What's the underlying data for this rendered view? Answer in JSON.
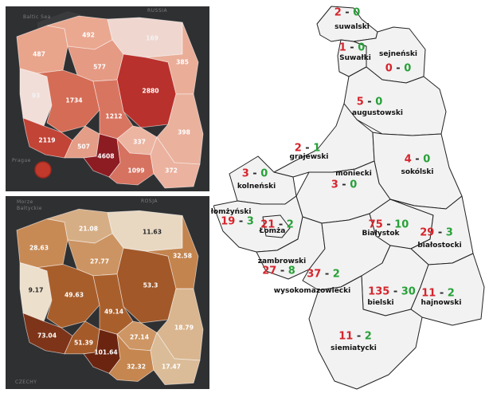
{
  "top_map": {
    "background_labels": [
      "Baltic Sea",
      "RUSSIA",
      "Prague"
    ],
    "voivodeships": [
      {
        "id": "zachodniopomorskie",
        "value": "487",
        "color": "#e9a48c"
      },
      {
        "id": "pomorskie",
        "value": "492",
        "color": "#eaa890"
      },
      {
        "id": "warminsko-mazurskie",
        "value": "169",
        "color": "#efd6cf"
      },
      {
        "id": "kujawsko-pomorskie",
        "value": "577",
        "color": "#e59a83"
      },
      {
        "id": "podlaskie",
        "value": "385",
        "color": "#eaad98"
      },
      {
        "id": "lubuskie",
        "value": "93",
        "color": "#f2ded8"
      },
      {
        "id": "wielkopolskie",
        "value": "1734",
        "color": "#d56c55"
      },
      {
        "id": "mazowieckie",
        "value": "2880",
        "color": "#b9312c"
      },
      {
        "id": "lodzkie",
        "value": "1212",
        "color": "#d87560"
      },
      {
        "id": "dolnoslaskie",
        "value": "2119",
        "color": "#c24437"
      },
      {
        "id": "opolskie",
        "value": "507",
        "color": "#e49d86"
      },
      {
        "id": "swietokrzyskie",
        "value": "337",
        "color": "#ecb5a2"
      },
      {
        "id": "lubelskie",
        "value": "398",
        "color": "#eab19d"
      },
      {
        "id": "slaskie",
        "value": "4608",
        "color": "#8c1b22"
      },
      {
        "id": "malopolskie",
        "value": "1099",
        "color": "#d67260"
      },
      {
        "id": "podkarpackie",
        "value": "372",
        "color": "#ebb29f"
      }
    ]
  },
  "bottom_map": {
    "background_labels": [
      "Morze",
      "Baltyckie",
      "ROSJA",
      "CZECHY"
    ],
    "voivodeships": [
      {
        "id": "zachodniopomorskie",
        "value": "28.63",
        "color": "#c88a55"
      },
      {
        "id": "pomorskie",
        "value": "21.08",
        "color": "#d6ae85"
      },
      {
        "id": "warminsko-mazurskie",
        "value": "11.63",
        "color": "#e8d8c2"
      },
      {
        "id": "kujawsko-pomorskie",
        "value": "27.77",
        "color": "#cc9462"
      },
      {
        "id": "podlaskie",
        "value": "32.58",
        "color": "#c4844e"
      },
      {
        "id": "lubuskie",
        "value": "9.17",
        "color": "#ecdfcc"
      },
      {
        "id": "wielkopolskie",
        "value": "49.63",
        "color": "#a85e2b"
      },
      {
        "id": "mazowieckie",
        "value": "53.3",
        "color": "#a25828"
      },
      {
        "id": "lodzkie",
        "value": "49.14",
        "color": "#a95f2c"
      },
      {
        "id": "dolnoslaskie",
        "value": "73.04",
        "color": "#7e3418"
      },
      {
        "id": "opolskie",
        "value": "51.39",
        "color": "#a55a29"
      },
      {
        "id": "swietokrzyskie",
        "value": "27.14",
        "color": "#cd9664"
      },
      {
        "id": "lubelskie",
        "value": "18.79",
        "color": "#d9b68f"
      },
      {
        "id": "slaskie",
        "value": "101.64",
        "color": "#6a2410"
      },
      {
        "id": "malopolskie",
        "value": "32.32",
        "color": "#c5864f"
      },
      {
        "id": "podkarpackie",
        "value": "17.47",
        "color": "#dbbc98"
      }
    ]
  },
  "podlaskie_map": {
    "colors": {
      "cases": "#d6242c",
      "recovered": "#27a038",
      "fill": "#f2f2f2",
      "border": "#222222"
    },
    "powiaty": [
      {
        "name": "suwalski",
        "cases": "2",
        "recovered": "0"
      },
      {
        "name": "Suwałki",
        "cases": "1",
        "recovered": "0"
      },
      {
        "name": "sejneński",
        "cases": "0",
        "recovered": "0"
      },
      {
        "name": "augustowski",
        "cases": "5",
        "recovered": "0"
      },
      {
        "name": "grajewski",
        "cases": "2",
        "recovered": "1"
      },
      {
        "name": "sokólski",
        "cases": "4",
        "recovered": "0"
      },
      {
        "name": "kolneński",
        "cases": "3",
        "recovered": "0"
      },
      {
        "name": "moniecki",
        "cases": "3",
        "recovered": "0"
      },
      {
        "name": "łomżyński",
        "cases": "19",
        "recovered": "3"
      },
      {
        "name": "Łomża",
        "cases": "21",
        "recovered": "2"
      },
      {
        "name": "Białystok",
        "cases": "75",
        "recovered": "10"
      },
      {
        "name": "białostocki",
        "cases": "29",
        "recovered": "3"
      },
      {
        "name": "zambrowski",
        "cases": "27",
        "recovered": "8"
      },
      {
        "name": "wysokomazowiecki",
        "cases": "37",
        "recovered": "2"
      },
      {
        "name": "bielski",
        "cases": "135",
        "recovered": "30"
      },
      {
        "name": "hajnowski",
        "cases": "11",
        "recovered": "2"
      },
      {
        "name": "siemiatycki",
        "cases": "11",
        "recovered": "2"
      }
    ]
  }
}
